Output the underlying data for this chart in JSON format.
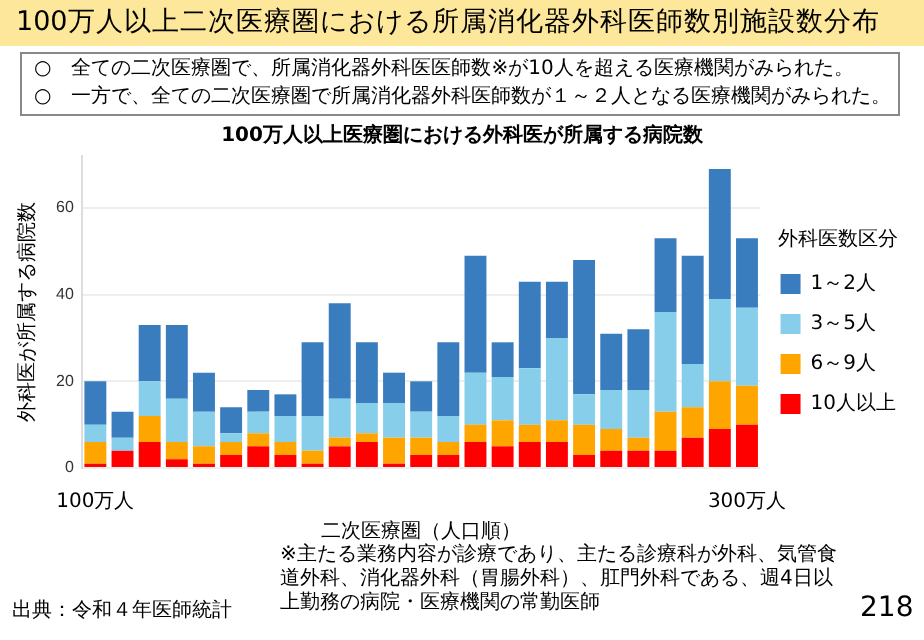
{
  "chart_data": {
    "type": "bar",
    "title": "100万人以上二次医療圏における所属消化器外科医師数別施設数分布",
    "subtitle": "100万人以上医療圏における外科医が所属する病院数",
    "xlabel": "二次医療圏（人口順）",
    "ylabel": "外科医が所属する病院数",
    "legend_title": "外科医数区分",
    "annotations": [
      "○　全ての二次医療圏で、所属消化器外科医医師数※が10人を超える医療機関がみられた。",
      "○　一方で、全ての二次医療圏で所属消化器外科医師数が１～２人となる医療機関がみられた。",
      "出典：令和４年医師統計",
      "※主たる業務内容が診療であり、主たる診療科が外科、気管食道外科、消化器外科（胃腸外科）、肛門外科である、週4日以上勤務の病院・医療機関の常勤医師",
      "218"
    ],
    "categories": [
      "100万人",
      null,
      null,
      null,
      null,
      null,
      null,
      null,
      null,
      null,
      null,
      null,
      null,
      null,
      null,
      null,
      null,
      null,
      null,
      null,
      null,
      null,
      null,
      null,
      "300万人"
    ],
    "series": [
      {
        "name": "10人以上",
        "color": "#ff0000",
        "values": [
          1,
          4,
          6,
          2,
          1,
          3,
          5,
          3,
          1,
          5,
          6,
          1,
          3,
          3,
          6,
          5,
          6,
          6,
          3,
          4,
          4,
          4,
          7,
          9,
          10
        ]
      },
      {
        "name": "6～9人",
        "color": "#ffa500",
        "values": [
          5,
          0,
          6,
          4,
          4,
          3,
          3,
          3,
          3,
          2,
          2,
          6,
          4,
          3,
          4,
          6,
          4,
          5,
          7,
          5,
          3,
          9,
          7,
          11,
          9
        ]
      },
      {
        "name": "3～5人",
        "color": "#87ceeb",
        "values": [
          4,
          3,
          8,
          10,
          8,
          2,
          5,
          6,
          8,
          9,
          7,
          8,
          6,
          6,
          12,
          10,
          13,
          19,
          7,
          9,
          11,
          23,
          10,
          19,
          18
        ]
      },
      {
        "name": "1～2人",
        "color": "#3a7dbf",
        "values": [
          10,
          6,
          13,
          17,
          9,
          6,
          5,
          5,
          17,
          22,
          14,
          7,
          7,
          17,
          27,
          8,
          20,
          13,
          31,
          13,
          14,
          17,
          25,
          30,
          16
        ]
      }
    ],
    "stacked": true,
    "ylim": [
      0,
      72
    ],
    "yticks": [
      0,
      20,
      40,
      60
    ],
    "grid": "y",
    "legend": "right"
  }
}
